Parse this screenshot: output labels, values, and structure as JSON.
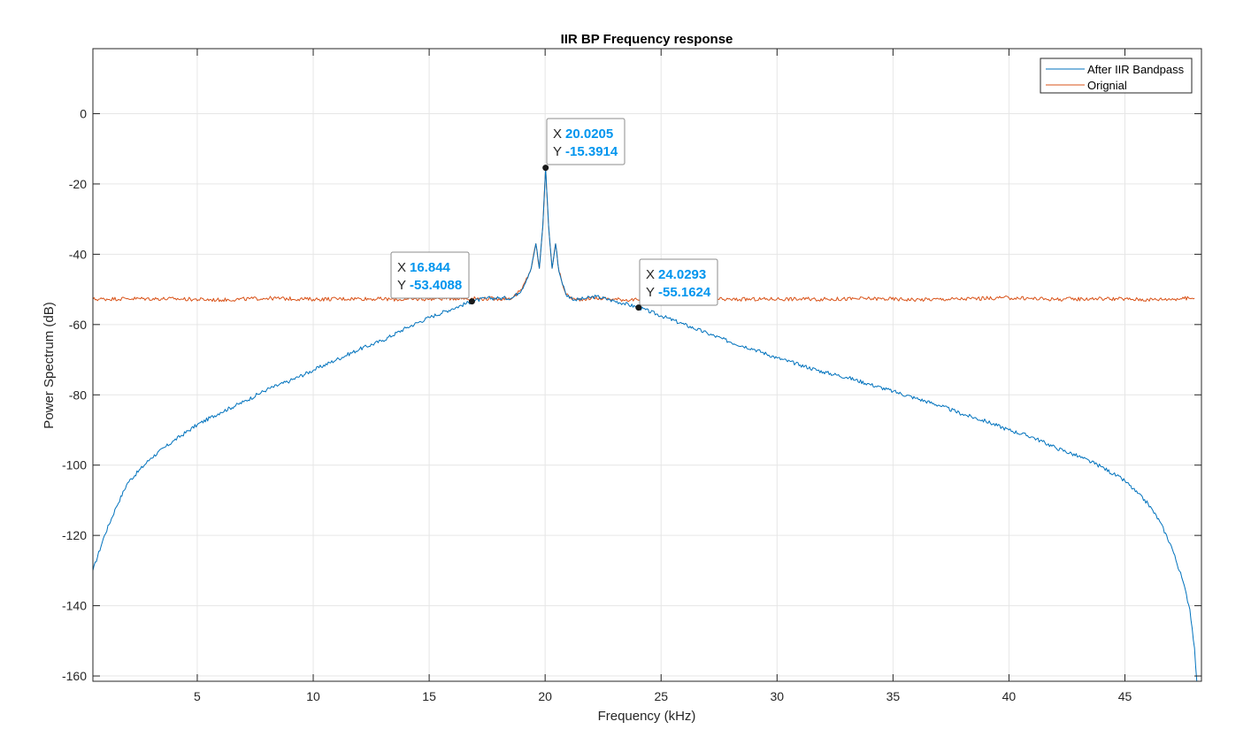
{
  "chart_data": {
    "type": "line",
    "title": "IIR BP Frequency response",
    "xlabel": "Frequency (kHz)",
    "ylabel": "Power Spectrum (dB)",
    "xlim": [
      0.5,
      48.3
    ],
    "ylim": [
      -161.5,
      18.5
    ],
    "xticks": [
      5,
      10,
      15,
      20,
      25,
      30,
      35,
      40,
      45
    ],
    "yticks": [
      0,
      -20,
      -40,
      -60,
      -80,
      -100,
      -120,
      -140,
      -160
    ],
    "grid": true,
    "legend_position": "top-right",
    "colors": {
      "filtered": "#0072BD",
      "original": "#D95319",
      "value_text": "#0095EE"
    },
    "series": [
      {
        "name": "After IIR Bandpass",
        "x": [
          0.5,
          1,
          1.5,
          2,
          3,
          4,
          5,
          6,
          7,
          8,
          9,
          10,
          11,
          12,
          13,
          14,
          15,
          16,
          16.844,
          17.5,
          18,
          18.6,
          19,
          19.4,
          19.6,
          19.75,
          19.9,
          20.0205,
          20.15,
          20.3,
          20.45,
          20.6,
          20.9,
          21.3,
          21.8,
          22.2,
          22.8,
          23.4,
          24.0293,
          25,
          26,
          27,
          28,
          29,
          30,
          31,
          32,
          33,
          34,
          35,
          36,
          37,
          38,
          39,
          40,
          41,
          42,
          43,
          44,
          45,
          46,
          46.5,
          47,
          47.5,
          47.8,
          48.0,
          48.1
        ],
        "y": [
          -130,
          -120,
          -112,
          -105,
          -98,
          -93,
          -88.5,
          -85,
          -82,
          -78.5,
          -76,
          -73,
          -70,
          -67,
          -64.5,
          -61,
          -58,
          -55.5,
          -53.4,
          -52.5,
          -52.5,
          -52.4,
          -50,
          -44,
          -37,
          -44,
          -32,
          -15.39,
          -32,
          -44,
          -37,
          -45,
          -51.5,
          -53,
          -52.5,
          -52,
          -53,
          -54,
          -55.16,
          -57.5,
          -60,
          -62.5,
          -65,
          -67,
          -69.5,
          -71.5,
          -73.5,
          -75,
          -77,
          -79,
          -81,
          -83,
          -85.5,
          -87.5,
          -90,
          -92,
          -95,
          -97.5,
          -100.5,
          -104.5,
          -111,
          -116,
          -123,
          -133,
          -141,
          -152,
          -161.5
        ]
      },
      {
        "name": "Orignial",
        "x": [
          0.5,
          2,
          4,
          6,
          8,
          10,
          12,
          14,
          16,
          17,
          18,
          18.6,
          19,
          19.4,
          19.6,
          19.75,
          19.9,
          20.0205,
          20.15,
          20.3,
          20.45,
          20.6,
          20.9,
          21.3,
          22,
          23,
          24,
          26,
          28,
          30,
          32,
          34,
          36,
          38,
          40,
          42,
          44,
          46,
          48.0
        ],
        "y": [
          -52.8,
          -52.6,
          -52.7,
          -53,
          -52.5,
          -52.8,
          -52.6,
          -52.9,
          -52.5,
          -52.6,
          -52.7,
          -52.4,
          -50,
          -44,
          -37,
          -44,
          -32,
          -15.39,
          -32,
          -44,
          -37,
          -45,
          -51.5,
          -53,
          -52.4,
          -52.8,
          -53,
          -52.6,
          -52.9,
          -52.7,
          -52.8,
          -52.6,
          -52.9,
          -52.7,
          -52.4,
          -52.8,
          -52.6,
          -52.9,
          -52.5
        ]
      }
    ],
    "datatips": [
      {
        "x_label": "X",
        "x_value": "20.0205",
        "y_label": "Y",
        "y_value": "-15.3914",
        "x": 20.0205,
        "y": -15.3914
      },
      {
        "x_label": "X",
        "x_value": "16.844",
        "y_label": "Y",
        "y_value": "-53.4088",
        "x": 16.844,
        "y": -53.4088
      },
      {
        "x_label": "X",
        "x_value": "24.0293",
        "y_label": "Y",
        "y_value": "-55.1624",
        "x": 24.0293,
        "y": -55.1624
      }
    ]
  }
}
